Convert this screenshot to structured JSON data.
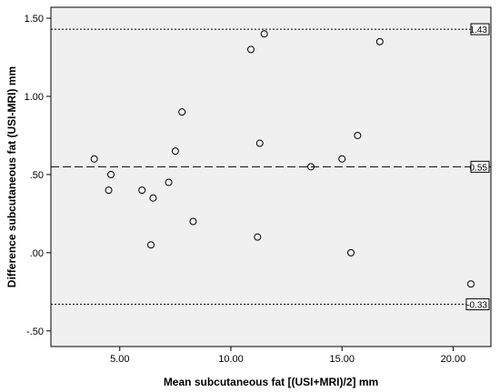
{
  "chart_data": {
    "type": "scatter",
    "title": "",
    "xlabel": "Mean subcutaneous fat [(USI+MRI)/2] mm",
    "ylabel": "Difference subcutaneous fat (USI-MRI) mm",
    "xlim": [
      1.9,
      21.7
    ],
    "ylim": [
      -0.6,
      1.57
    ],
    "x_ticks": [
      5.0,
      10.0,
      15.0,
      20.0
    ],
    "x_tick_labels": [
      "5.00",
      "10.00",
      "15.00",
      "20.00"
    ],
    "y_ticks": [
      -0.5,
      0.0,
      0.5,
      1.0,
      1.5
    ],
    "y_tick_labels": [
      "-.50",
      ".00",
      ".50",
      "1.00",
      "1.50"
    ],
    "grid": false,
    "reference_lines": [
      {
        "value": 1.43,
        "label": "1.43",
        "style": "dotted"
      },
      {
        "value": 0.55,
        "label": "0.55",
        "style": "dashed"
      },
      {
        "value": -0.33,
        "label": "-0.33",
        "style": "dotted"
      }
    ],
    "points": [
      {
        "x": 3.85,
        "y": 0.6
      },
      {
        "x": 4.5,
        "y": 0.4
      },
      {
        "x": 4.6,
        "y": 0.5
      },
      {
        "x": 6.0,
        "y": 0.4
      },
      {
        "x": 6.4,
        "y": 0.05
      },
      {
        "x": 6.5,
        "y": 0.35
      },
      {
        "x": 7.2,
        "y": 0.45
      },
      {
        "x": 7.5,
        "y": 0.65
      },
      {
        "x": 7.8,
        "y": 0.9
      },
      {
        "x": 8.3,
        "y": 0.2
      },
      {
        "x": 10.9,
        "y": 1.3
      },
      {
        "x": 11.2,
        "y": 0.1
      },
      {
        "x": 11.3,
        "y": 0.7
      },
      {
        "x": 11.5,
        "y": 1.4
      },
      {
        "x": 13.6,
        "y": 0.55
      },
      {
        "x": 15.0,
        "y": 0.6
      },
      {
        "x": 15.4,
        "y": 0.0
      },
      {
        "x": 15.7,
        "y": 0.75
      },
      {
        "x": 16.7,
        "y": 1.35
      },
      {
        "x": 20.8,
        "y": -0.2
      }
    ],
    "colors": {
      "plot_background": "#f0f0f0",
      "marker": "#000000",
      "line": "#000000"
    }
  }
}
